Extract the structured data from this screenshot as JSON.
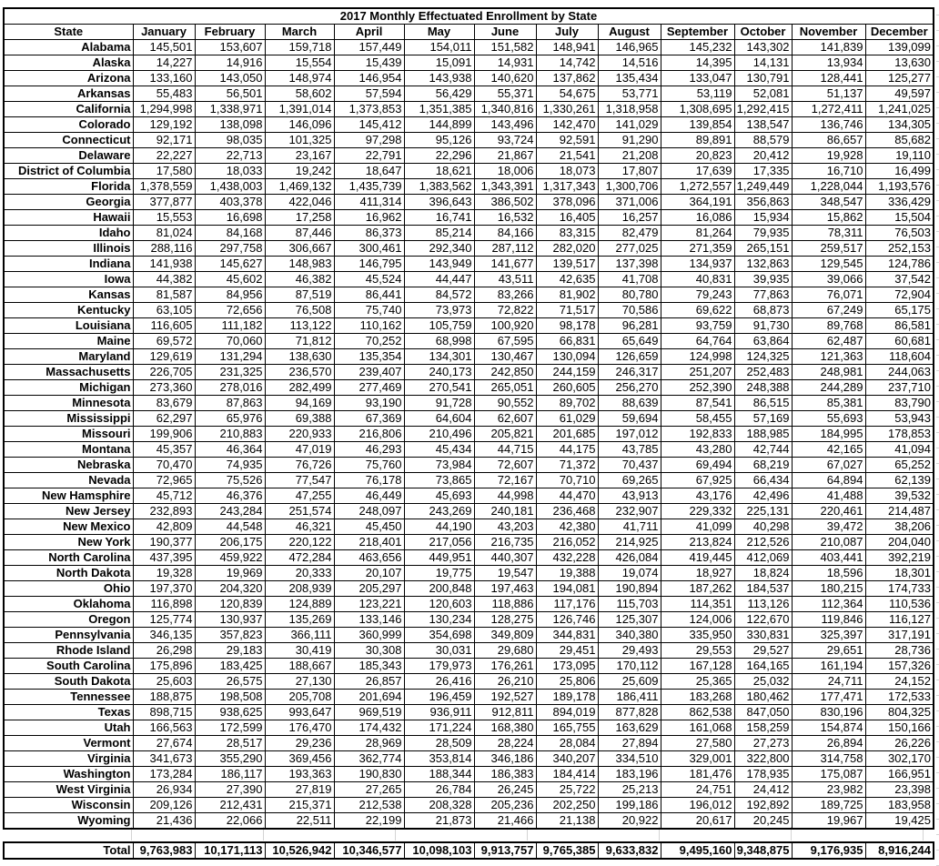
{
  "title": "2017 Monthly Effectuated Enrollment by State",
  "columns": [
    "State",
    "January",
    "February",
    "March",
    "April",
    "May",
    "June",
    "July",
    "August",
    "September",
    "October",
    "November",
    "December"
  ],
  "rows": [
    {
      "state": "Alabama",
      "values": [
        "145,501",
        "153,607",
        "159,718",
        "157,449",
        "154,011",
        "151,582",
        "148,941",
        "146,965",
        "145,232",
        "143,302",
        "141,839",
        "139,099"
      ]
    },
    {
      "state": "Alaska",
      "values": [
        "14,227",
        "14,916",
        "15,554",
        "15,439",
        "15,091",
        "14,931",
        "14,742",
        "14,516",
        "14,395",
        "14,131",
        "13,934",
        "13,630"
      ]
    },
    {
      "state": "Arizona",
      "values": [
        "133,160",
        "143,050",
        "148,974",
        "146,954",
        "143,938",
        "140,620",
        "137,862",
        "135,434",
        "133,047",
        "130,791",
        "128,441",
        "125,277"
      ]
    },
    {
      "state": "Arkansas",
      "values": [
        "55,483",
        "56,501",
        "58,602",
        "57,594",
        "56,429",
        "55,371",
        "54,675",
        "53,771",
        "53,119",
        "52,081",
        "51,137",
        "49,597"
      ]
    },
    {
      "state": "California",
      "values": [
        "1,294,998",
        "1,338,971",
        "1,391,014",
        "1,373,853",
        "1,351,385",
        "1,340,816",
        "1,330,261",
        "1,318,958",
        "1,308,695",
        "1,292,415",
        "1,272,411",
        "1,241,025"
      ]
    },
    {
      "state": "Colorado",
      "values": [
        "129,192",
        "138,098",
        "146,096",
        "145,412",
        "144,899",
        "143,496",
        "142,470",
        "141,029",
        "139,854",
        "138,547",
        "136,746",
        "134,305"
      ]
    },
    {
      "state": "Connecticut",
      "values": [
        "92,171",
        "98,035",
        "101,325",
        "97,298",
        "95,126",
        "93,724",
        "92,591",
        "91,290",
        "89,891",
        "88,579",
        "86,657",
        "85,682"
      ]
    },
    {
      "state": "Delaware",
      "values": [
        "22,227",
        "22,713",
        "23,167",
        "22,791",
        "22,296",
        "21,867",
        "21,541",
        "21,208",
        "20,823",
        "20,412",
        "19,928",
        "19,110"
      ]
    },
    {
      "state": "District of Columbia",
      "values": [
        "17,580",
        "18,033",
        "19,242",
        "18,647",
        "18,621",
        "18,006",
        "18,073",
        "17,807",
        "17,639",
        "17,335",
        "16,710",
        "16,499"
      ]
    },
    {
      "state": "Florida",
      "values": [
        "1,378,559",
        "1,438,003",
        "1,469,132",
        "1,435,739",
        "1,383,562",
        "1,343,391",
        "1,317,343",
        "1,300,706",
        "1,272,557",
        "1,249,449",
        "1,228,044",
        "1,193,576"
      ]
    },
    {
      "state": "Georgia",
      "values": [
        "377,877",
        "403,378",
        "422,046",
        "411,314",
        "396,643",
        "386,502",
        "378,096",
        "371,006",
        "364,191",
        "356,863",
        "348,547",
        "336,429"
      ]
    },
    {
      "state": "Hawaii",
      "values": [
        "15,553",
        "16,698",
        "17,258",
        "16,962",
        "16,741",
        "16,532",
        "16,405",
        "16,257",
        "16,086",
        "15,934",
        "15,862",
        "15,504"
      ]
    },
    {
      "state": "Idaho",
      "values": [
        "81,024",
        "84,168",
        "87,446",
        "86,373",
        "85,214",
        "84,166",
        "83,315",
        "82,479",
        "81,264",
        "79,935",
        "78,311",
        "76,503"
      ]
    },
    {
      "state": "Illinois",
      "values": [
        "288,116",
        "297,758",
        "306,667",
        "300,461",
        "292,340",
        "287,112",
        "282,020",
        "277,025",
        "271,359",
        "265,151",
        "259,517",
        "252,153"
      ]
    },
    {
      "state": "Indiana",
      "values": [
        "141,938",
        "145,627",
        "148,983",
        "146,795",
        "143,949",
        "141,677",
        "139,517",
        "137,398",
        "134,937",
        "132,863",
        "129,545",
        "124,786"
      ]
    },
    {
      "state": "Iowa",
      "values": [
        "44,382",
        "45,602",
        "46,382",
        "45,524",
        "44,447",
        "43,511",
        "42,635",
        "41,708",
        "40,831",
        "39,935",
        "39,066",
        "37,542"
      ]
    },
    {
      "state": "Kansas",
      "values": [
        "81,587",
        "84,956",
        "87,519",
        "86,441",
        "84,572",
        "83,266",
        "81,902",
        "80,780",
        "79,243",
        "77,863",
        "76,071",
        "72,904"
      ]
    },
    {
      "state": "Kentucky",
      "values": [
        "63,105",
        "72,656",
        "76,508",
        "75,740",
        "73,973",
        "72,822",
        "71,517",
        "70,586",
        "69,622",
        "68,873",
        "67,249",
        "65,175"
      ]
    },
    {
      "state": "Louisiana",
      "values": [
        "116,605",
        "111,182",
        "113,122",
        "110,162",
        "105,759",
        "100,920",
        "98,178",
        "96,281",
        "93,759",
        "91,730",
        "89,768",
        "86,581"
      ]
    },
    {
      "state": "Maine",
      "values": [
        "69,572",
        "70,060",
        "71,812",
        "70,252",
        "68,998",
        "67,595",
        "66,831",
        "65,649",
        "64,764",
        "63,864",
        "62,487",
        "60,681"
      ]
    },
    {
      "state": "Maryland",
      "values": [
        "129,619",
        "131,294",
        "138,630",
        "135,354",
        "134,301",
        "130,467",
        "130,094",
        "126,659",
        "124,998",
        "124,325",
        "121,363",
        "118,604"
      ]
    },
    {
      "state": "Massachusetts",
      "values": [
        "226,705",
        "231,325",
        "236,570",
        "239,407",
        "240,173",
        "242,850",
        "244,159",
        "246,317",
        "251,207",
        "252,483",
        "248,981",
        "244,063"
      ]
    },
    {
      "state": "Michigan",
      "values": [
        "273,360",
        "278,016",
        "282,499",
        "277,469",
        "270,541",
        "265,051",
        "260,605",
        "256,270",
        "252,390",
        "248,388",
        "244,289",
        "237,710"
      ]
    },
    {
      "state": "Minnesota",
      "values": [
        "83,679",
        "87,863",
        "94,169",
        "93,190",
        "91,728",
        "90,552",
        "89,702",
        "88,639",
        "87,541",
        "86,515",
        "85,381",
        "83,790"
      ]
    },
    {
      "state": "Mississippi",
      "values": [
        "62,297",
        "65,976",
        "69,388",
        "67,369",
        "64,604",
        "62,607",
        "61,029",
        "59,694",
        "58,455",
        "57,169",
        "55,693",
        "53,943"
      ]
    },
    {
      "state": "Missouri",
      "values": [
        "199,906",
        "210,883",
        "220,933",
        "216,806",
        "210,496",
        "205,821",
        "201,685",
        "197,012",
        "192,833",
        "188,985",
        "184,995",
        "178,853"
      ]
    },
    {
      "state": "Montana",
      "values": [
        "45,357",
        "46,364",
        "47,019",
        "46,293",
        "45,434",
        "44,715",
        "44,175",
        "43,785",
        "43,280",
        "42,744",
        "42,165",
        "41,094"
      ]
    },
    {
      "state": "Nebraska",
      "values": [
        "70,470",
        "74,935",
        "76,726",
        "75,760",
        "73,984",
        "72,607",
        "71,372",
        "70,437",
        "69,494",
        "68,219",
        "67,027",
        "65,252"
      ]
    },
    {
      "state": "Nevada",
      "values": [
        "72,965",
        "75,526",
        "77,547",
        "76,178",
        "73,865",
        "72,167",
        "70,710",
        "69,265",
        "67,925",
        "66,434",
        "64,894",
        "62,139"
      ]
    },
    {
      "state": "New Hamsphire",
      "values": [
        "45,712",
        "46,376",
        "47,255",
        "46,449",
        "45,693",
        "44,998",
        "44,470",
        "43,913",
        "43,176",
        "42,496",
        "41,488",
        "39,532"
      ]
    },
    {
      "state": "New Jersey",
      "values": [
        "232,893",
        "243,284",
        "251,574",
        "248,097",
        "243,269",
        "240,181",
        "236,468",
        "232,907",
        "229,332",
        "225,131",
        "220,461",
        "214,487"
      ]
    },
    {
      "state": "New Mexico",
      "values": [
        "42,809",
        "44,548",
        "46,321",
        "45,450",
        "44,190",
        "43,203",
        "42,380",
        "41,711",
        "41,099",
        "40,298",
        "39,472",
        "38,206"
      ]
    },
    {
      "state": "New York",
      "values": [
        "190,377",
        "206,175",
        "220,122",
        "218,401",
        "217,056",
        "216,735",
        "216,052",
        "214,925",
        "213,824",
        "212,526",
        "210,087",
        "204,040"
      ]
    },
    {
      "state": "North Carolina",
      "values": [
        "437,395",
        "459,922",
        "472,284",
        "463,656",
        "449,951",
        "440,307",
        "432,228",
        "426,084",
        "419,445",
        "412,069",
        "403,441",
        "392,219"
      ]
    },
    {
      "state": "North Dakota",
      "values": [
        "19,328",
        "19,969",
        "20,333",
        "20,107",
        "19,775",
        "19,547",
        "19,388",
        "19,074",
        "18,927",
        "18,824",
        "18,596",
        "18,301"
      ]
    },
    {
      "state": "Ohio",
      "values": [
        "197,370",
        "204,320",
        "208,939",
        "205,297",
        "200,848",
        "197,463",
        "194,081",
        "190,894",
        "187,262",
        "184,537",
        "180,215",
        "174,733"
      ]
    },
    {
      "state": "Oklahoma",
      "values": [
        "116,898",
        "120,839",
        "124,889",
        "123,221",
        "120,603",
        "118,886",
        "117,176",
        "115,703",
        "114,351",
        "113,126",
        "112,364",
        "110,536"
      ]
    },
    {
      "state": "Oregon",
      "values": [
        "125,774",
        "130,937",
        "135,269",
        "133,146",
        "130,234",
        "128,275",
        "126,746",
        "125,307",
        "124,006",
        "122,670",
        "119,846",
        "116,127"
      ]
    },
    {
      "state": "Pennsylvania",
      "values": [
        "346,135",
        "357,823",
        "366,111",
        "360,999",
        "354,698",
        "349,809",
        "344,831",
        "340,380",
        "335,950",
        "330,831",
        "325,397",
        "317,191"
      ]
    },
    {
      "state": "Rhode Island",
      "values": [
        "26,298",
        "29,183",
        "30,419",
        "30,308",
        "30,031",
        "29,680",
        "29,451",
        "29,493",
        "29,553",
        "29,527",
        "29,651",
        "28,736"
      ]
    },
    {
      "state": "South Carolina",
      "values": [
        "175,896",
        "183,425",
        "188,667",
        "185,343",
        "179,973",
        "176,261",
        "173,095",
        "170,112",
        "167,128",
        "164,165",
        "161,194",
        "157,326"
      ]
    },
    {
      "state": "South Dakota",
      "values": [
        "25,603",
        "26,575",
        "27,130",
        "26,857",
        "26,416",
        "26,210",
        "25,806",
        "25,609",
        "25,365",
        "25,032",
        "24,711",
        "24,152"
      ]
    },
    {
      "state": "Tennessee",
      "values": [
        "188,875",
        "198,508",
        "205,708",
        "201,694",
        "196,459",
        "192,527",
        "189,178",
        "186,411",
        "183,268",
        "180,462",
        "177,471",
        "172,533"
      ]
    },
    {
      "state": "Texas",
      "values": [
        "898,715",
        "938,625",
        "993,647",
        "969,519",
        "936,911",
        "912,811",
        "894,019",
        "877,828",
        "862,538",
        "847,050",
        "830,196",
        "804,325"
      ]
    },
    {
      "state": "Utah",
      "values": [
        "166,563",
        "172,599",
        "176,470",
        "174,432",
        "171,224",
        "168,380",
        "165,755",
        "163,629",
        "161,068",
        "158,259",
        "154,874",
        "150,166"
      ]
    },
    {
      "state": "Vermont",
      "values": [
        "27,674",
        "28,517",
        "29,236",
        "28,969",
        "28,509",
        "28,224",
        "28,084",
        "27,894",
        "27,580",
        "27,273",
        "26,894",
        "26,226"
      ]
    },
    {
      "state": "Virginia",
      "values": [
        "341,673",
        "355,290",
        "369,456",
        "362,774",
        "353,814",
        "346,186",
        "340,207",
        "334,510",
        "329,001",
        "322,800",
        "314,758",
        "302,170"
      ]
    },
    {
      "state": "Washington",
      "values": [
        "173,284",
        "186,117",
        "193,363",
        "190,830",
        "188,344",
        "186,383",
        "184,414",
        "183,196",
        "181,476",
        "178,935",
        "175,087",
        "166,951"
      ]
    },
    {
      "state": "West Virginia",
      "values": [
        "26,934",
        "27,390",
        "27,819",
        "27,265",
        "26,784",
        "26,245",
        "25,722",
        "25,213",
        "24,751",
        "24,412",
        "23,982",
        "23,398"
      ]
    },
    {
      "state": "Wisconsin",
      "values": [
        "209,126",
        "212,431",
        "215,371",
        "212,538",
        "208,328",
        "205,236",
        "202,250",
        "199,186",
        "196,012",
        "192,892",
        "189,725",
        "183,958"
      ]
    },
    {
      "state": "Wyoming",
      "values": [
        "21,436",
        "22,066",
        "22,511",
        "22,199",
        "21,873",
        "21,466",
        "21,138",
        "20,922",
        "20,617",
        "20,245",
        "19,967",
        "19,425"
      ]
    }
  ],
  "total": {
    "label": "Total",
    "values": [
      "9,763,983",
      "10,171,113",
      "10,526,942",
      "10,346,577",
      "10,098,103",
      "9,913,757",
      "9,765,385",
      "9,633,832",
      "9,495,160",
      "9,348,875",
      "9,176,935",
      "8,916,244"
    ]
  }
}
